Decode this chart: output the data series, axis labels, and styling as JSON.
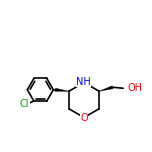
{
  "bg_color": "#ffffff",
  "line_color": "#000000",
  "atom_colors": {
    "N": "#0000ff",
    "O": "#ff0000",
    "Cl": "#00aa00",
    "C": "#000000",
    "H": "#000000"
  },
  "font_size_atoms": 7,
  "line_width": 1.2
}
